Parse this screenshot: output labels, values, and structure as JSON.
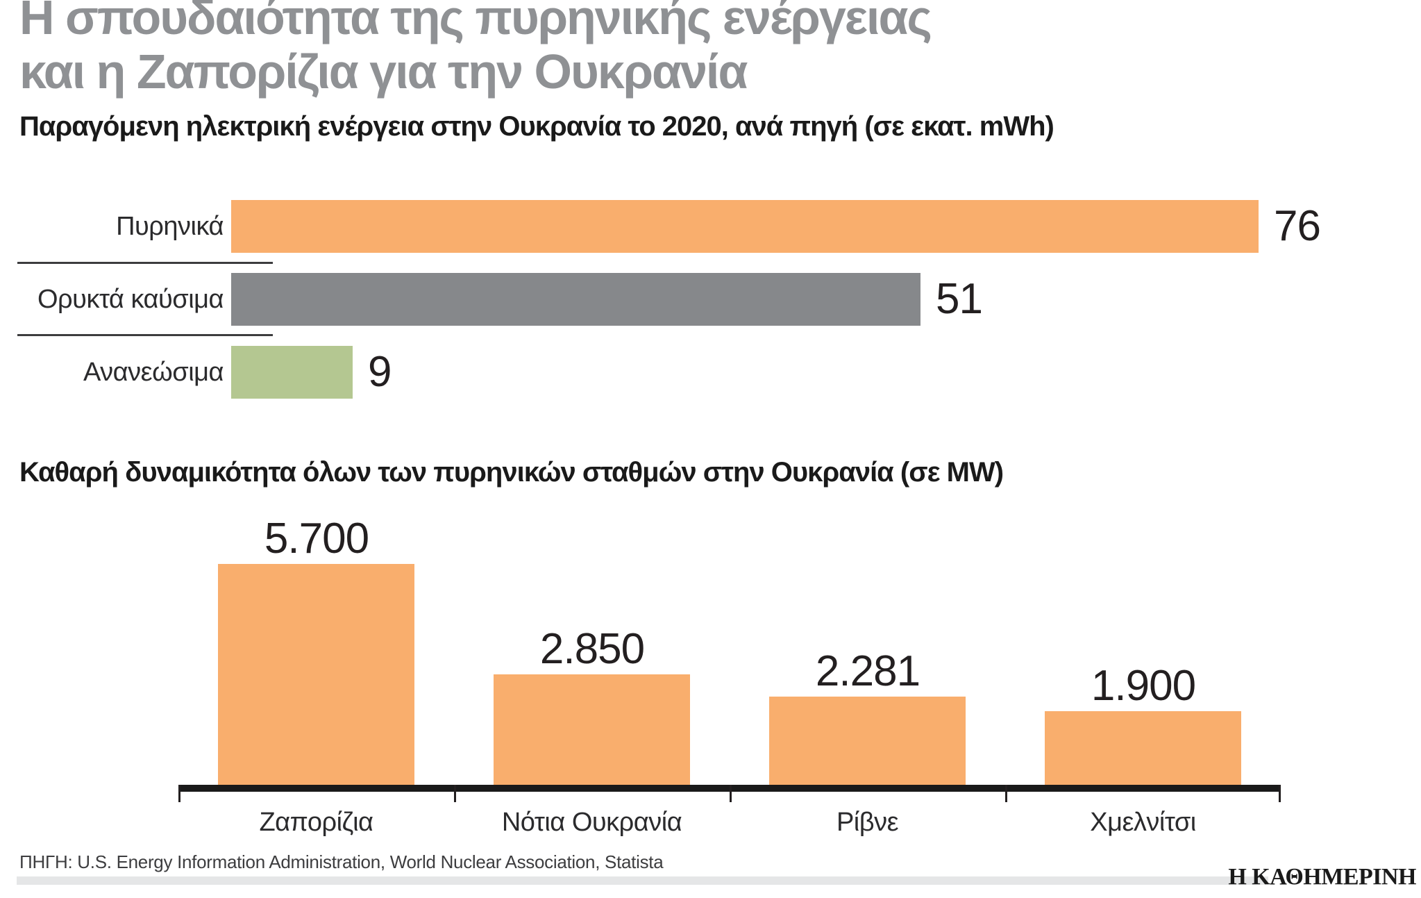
{
  "title": {
    "line1": "Η σπουδαιότητα της πυρηνικής ενέργειας",
    "line2": "και η Ζαπορίζια για την Ουκρανία"
  },
  "source": "ΠΗΓΗ: U.S. Energy Information Administration, World Nuclear Association, Statista",
  "logo": "Η ΚΑΘΗΜΕΡΙΝΗ",
  "colors": {
    "orange": "#F9AE6D",
    "gray": "#86888B",
    "green": "#B4C791",
    "title_gray": "#8F9194",
    "text_dark": "#231F20",
    "strip_gray": "#E5E6E7"
  },
  "chart_data": [
    {
      "type": "bar",
      "orientation": "horizontal",
      "title": "Παραγόμενη ηλεκτρική ενέργεια στην Ουκρανία το 2020, ανά πηγή (σε εκατ. mWh)",
      "categories": [
        "Πυρηνικά",
        "Ορυκτά καύσιμα",
        "Ανανεώσιμα"
      ],
      "values": [
        76,
        51,
        9
      ],
      "value_labels": [
        "76",
        "51",
        "9"
      ],
      "bar_colors": [
        "#F9AE6D",
        "#86888B",
        "#B4C791"
      ],
      "unit": "εκατ. mWh",
      "xlim": [
        0,
        80
      ],
      "grid": false,
      "legend": "none"
    },
    {
      "type": "bar",
      "orientation": "vertical",
      "title": "Καθαρή δυναμικότητα όλων των πυρηνικών σταθμών στην Ουκρανία (σε MW)",
      "categories": [
        "Ζαπορίζια",
        "Νότια Ουκρανία",
        "Ρίβνε",
        "Χμελνίτσι"
      ],
      "values": [
        5700,
        2850,
        2281,
        1900
      ],
      "value_labels": [
        "5.700",
        "2.850",
        "2.281",
        "1.900"
      ],
      "bar_colors": [
        "#F9AE6D",
        "#F9AE6D",
        "#F9AE6D",
        "#F9AE6D"
      ],
      "unit": "MW",
      "ylim": [
        0,
        5700
      ],
      "grid": false,
      "legend": "none"
    }
  ]
}
